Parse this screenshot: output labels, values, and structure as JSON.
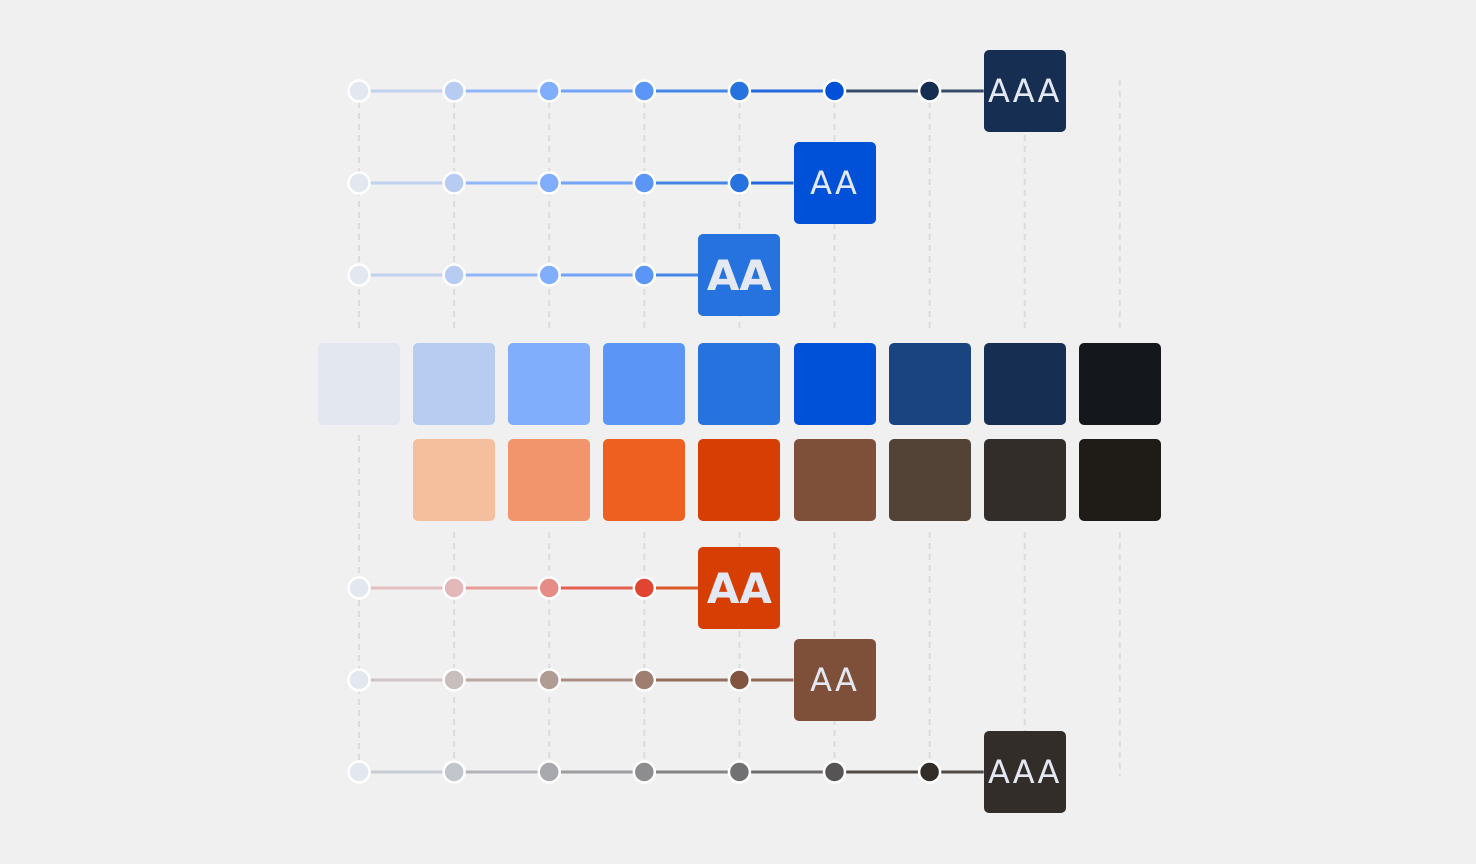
{
  "palette": {
    "blue_scale": [
      "#E2E7F0",
      "#B8CBF0",
      "#80ADFC",
      "#5B96F7",
      "#2673E0",
      "#0050D8",
      "#1A4480",
      "#162E51",
      "#14171C"
    ],
    "warm_scale": [
      "#F5BE9C",
      "#F2956C",
      "#ED6020",
      "#D63E04",
      "#7F5039",
      "#524336",
      "#332D29",
      "#1F1C18"
    ]
  },
  "rows_top": [
    {
      "nodes": [
        "#E2E7F0",
        "#B8CBF0",
        "#80ADFC",
        "#5B96F7",
        "#2673E0",
        "#0050D8",
        "#162E51"
      ],
      "badge": {
        "label": "AAA",
        "color": "#162E51",
        "bold": false
      }
    },
    {
      "nodes": [
        "#E2E7F0",
        "#B8CBF0",
        "#80ADFC",
        "#5B96F7",
        "#2673E0"
      ],
      "badge": {
        "label": "AA",
        "color": "#0050D8",
        "bold": false
      }
    },
    {
      "nodes": [
        "#E2E7F0",
        "#B8CBF0",
        "#80ADFC",
        "#5B96F7"
      ],
      "badge": {
        "label": "AA",
        "color": "#2673E0",
        "bold": true
      }
    }
  ],
  "rows_bottom": [
    {
      "nodes": [
        "#E2E7F0",
        "#E2B8B8",
        "#E68C86",
        "#E04532"
      ],
      "badge": {
        "label": "AA",
        "color": "#D63E04",
        "bold": true
      }
    },
    {
      "nodes": [
        "#E2E7F0",
        "#C8BEBC",
        "#B09C94",
        "#9E7E70",
        "#825540"
      ],
      "badge": {
        "label": "AA",
        "color": "#7F5039",
        "bold": false
      }
    },
    {
      "nodes": [
        "#E2E7F0",
        "#C2C6CC",
        "#A8A9AD",
        "#8D8D90",
        "#717073",
        "#565454",
        "#332D29"
      ],
      "badge": {
        "label": "AAA",
        "color": "#332D29",
        "bold": false
      }
    }
  ]
}
